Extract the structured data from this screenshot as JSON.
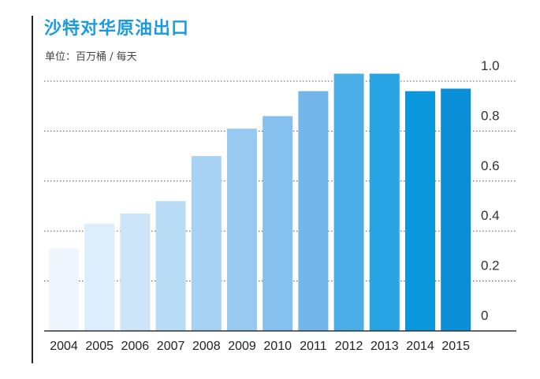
{
  "chart_data": {
    "type": "bar",
    "title": "沙特对华原油出口",
    "unit_label": "单位：百万桶 / 每天",
    "categories": [
      "2004",
      "2005",
      "2006",
      "2007",
      "2008",
      "2009",
      "2010",
      "2011",
      "2012",
      "2013",
      "2014",
      "2015"
    ],
    "values": [
      0.33,
      0.43,
      0.47,
      0.52,
      0.7,
      0.81,
      0.86,
      0.96,
      1.03,
      1.03,
      0.96,
      0.97
    ],
    "ylim": [
      0,
      1.0
    ],
    "yticks": [
      "0",
      "0.2",
      "0.4",
      "0.6",
      "0.8",
      "1.0"
    ],
    "ytick_values": [
      0,
      0.2,
      0.4,
      0.6,
      0.8,
      1.0
    ],
    "grid": true,
    "axis_side": "right",
    "colors": [
      "#eef5fd",
      "#dceefb",
      "#cde5f9",
      "#b9dcf6",
      "#a7d2f3",
      "#98caf1",
      "#86c0ee",
      "#72b6ea",
      "#4caee6",
      "#28a4e3",
      "#0b97dc",
      "#0a8fd6"
    ]
  }
}
